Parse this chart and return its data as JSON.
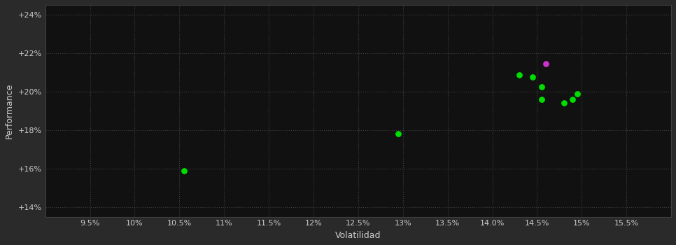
{
  "background_color": "#2a2a2a",
  "plot_bg_color": "#111111",
  "grid_color": "#404040",
  "text_color": "#cccccc",
  "xlabel": "Volatilidad",
  "ylabel": "Performance",
  "xlim": [
    0.09,
    0.16
  ],
  "ylim": [
    0.135,
    0.245
  ],
  "xticks": [
    0.095,
    0.1,
    0.105,
    0.11,
    0.115,
    0.12,
    0.125,
    0.13,
    0.135,
    0.14,
    0.145,
    0.15,
    0.155
  ],
  "yticks": [
    0.14,
    0.16,
    0.18,
    0.2,
    0.22,
    0.24
  ],
  "green_points": [
    [
      0.1055,
      0.159
    ],
    [
      0.1295,
      0.178
    ],
    [
      0.143,
      0.2085
    ],
    [
      0.1445,
      0.2075
    ],
    [
      0.1455,
      0.2025
    ],
    [
      0.1455,
      0.196
    ],
    [
      0.148,
      0.194
    ],
    [
      0.149,
      0.196
    ],
    [
      0.1495,
      0.199
    ]
  ],
  "magenta_points": [
    [
      0.146,
      0.2145
    ]
  ],
  "green_color": "#00dd00",
  "magenta_color": "#cc33cc",
  "marker_size": 28
}
